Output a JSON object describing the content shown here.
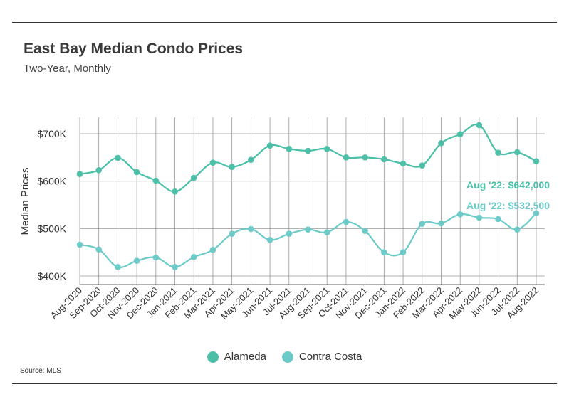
{
  "header": {
    "title": "East Bay Median Condo Prices",
    "subtitle": "Two-Year, Monthly"
  },
  "footer": {
    "source": "Source:  MLS"
  },
  "colors": {
    "alameda": "#4bbfa7",
    "contra_costa": "#6ccbc8",
    "grid": "#999999",
    "axis_text": "#333333"
  },
  "chart_data": {
    "type": "line",
    "ylabel": "Median Prices",
    "xlabel": "",
    "ylim": [
      370,
      725
    ],
    "y_ticks": [
      {
        "value": 400,
        "label": "$400K"
      },
      {
        "value": 500,
        "label": "$500K"
      },
      {
        "value": 600,
        "label": "$600K"
      },
      {
        "value": 700,
        "label": "$700K"
      }
    ],
    "grid": true,
    "legend_position": "bottom",
    "categories": [
      "Aug-2020",
      "Sep-2020",
      "Oct-2020",
      "Nov-2020",
      "Dec-2020",
      "Jan-2021",
      "Feb-2021",
      "Mar-2021",
      "Apr-2021",
      "May-2021",
      "Jun-2021",
      "Jul-2021",
      "Aug-2021",
      "Sep-2021",
      "Oct-2021",
      "Nov-2021",
      "Dec-2021",
      "Jan-2022",
      "Feb-2022",
      "Mar-2022",
      "Apr-2022",
      "May-2022",
      "Jun-2022",
      "Jul-2022",
      "Aug-2022"
    ],
    "series": [
      {
        "name": "Alameda",
        "values": [
          615,
          623,
          649,
          619,
          601,
          578,
          607,
          639,
          630,
          645,
          675,
          668,
          664,
          668,
          650,
          650,
          646,
          637,
          633,
          680,
          699,
          718,
          660,
          661,
          642
        ],
        "annotation": "Aug '22: $642,000"
      },
      {
        "name": "Contra Costa",
        "values": [
          466,
          456,
          419,
          432,
          439,
          419,
          440,
          455,
          489,
          499,
          476,
          489,
          498,
          492,
          514,
          495,
          450,
          450,
          510,
          511,
          530,
          523,
          520,
          498,
          532.5
        ],
        "annotation": "Aug '22: $532,500"
      }
    ]
  }
}
